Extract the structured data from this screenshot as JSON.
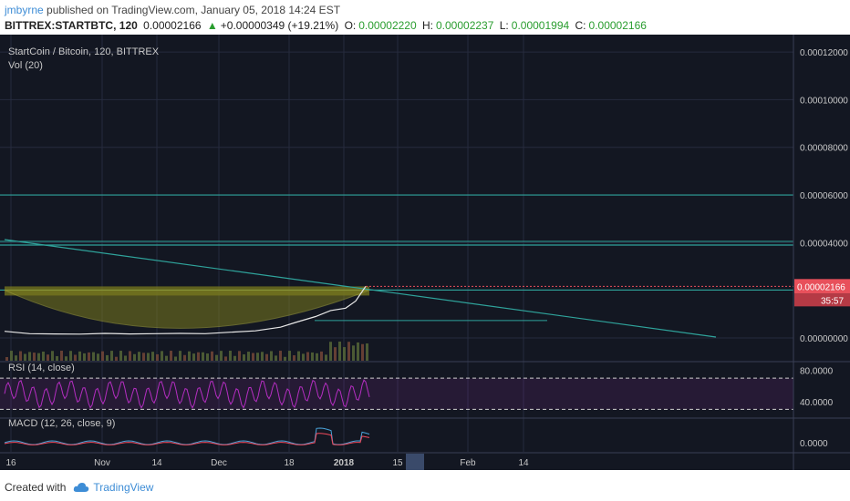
{
  "header": {
    "user": "jmbyrne",
    "published_text": "published on TradingView.com, January 05, 2018 14:24 EST",
    "symbol": "BITTREX:STARTBTC, 120",
    "last_price": "0.00002166",
    "change": "+0.00000349 (+19.21%)",
    "open_label": "O:",
    "open_value": "0.00002220",
    "high_label": "H:",
    "high_value": "0.00002237",
    "low_label": "L:",
    "low_value": "0.00001994",
    "close_label": "C:",
    "close_value": "0.00002166"
  },
  "footer": {
    "created_with": "Created with",
    "brand": "TradingView"
  },
  "colors": {
    "background": "#131722",
    "grid": "#262b3e",
    "price_line": "#e8e8e8",
    "trendline": "#2fa39b",
    "cup_fill": "#7a7a1e",
    "rsi": "#b52ec2",
    "macd_up": "#4aa3d9",
    "macd_signal": "#f0495c",
    "price_label": "#e8505b",
    "time_highlight": "#3a4a6a"
  },
  "chart_data": [
    {
      "type": "line",
      "title": "StartCoin / Bitcoin, 120, BITTREX",
      "indicator": "Vol (20)",
      "y_ticks": [
        "0.00012000",
        "0.00010000",
        "0.00008000",
        "0.00006000",
        "0.00004000",
        "0.00002166",
        "0.00000000"
      ],
      "x_ticks": [
        "16",
        "Nov",
        "14",
        "Dec",
        "18",
        "2018",
        "15",
        "Feb",
        "14"
      ],
      "ylim": [
        0,
        0.000125
      ],
      "last_price": 2.166e-05,
      "last_price_label": "0.00002166",
      "countdown": "35:57",
      "horizontal_levels": [
        6e-05,
        3.9e-05,
        2.01e-05
      ],
      "series": [
        {
          "x": [
            0,
            5,
            10,
            15,
            20,
            25,
            30,
            35,
            40,
            45,
            50,
            55,
            58,
            62,
            65,
            68,
            70,
            72
          ],
          "y": [
            2.8e-06,
            1.8e-06,
            1.7e-06,
            1.6e-06,
            1.9e-06,
            1.7e-06,
            1.8e-06,
            1.9e-06,
            1.8e-06,
            2.4e-06,
            3e-06,
            4.5e-06,
            6.5e-06,
            9e-06,
            1.15e-05,
            1.25e-05,
            1.55e-05,
            2.166e-05
          ]
        }
      ]
    },
    {
      "type": "line",
      "title": "RSI (14, close)",
      "y_ticks": [
        "80.0000",
        "40.0000"
      ],
      "ylim": [
        20,
        90
      ],
      "bands": [
        70,
        30
      ]
    },
    {
      "type": "line",
      "title": "MACD (12, 26, close, 9)",
      "y_ticks": [
        "0.0000"
      ]
    }
  ]
}
